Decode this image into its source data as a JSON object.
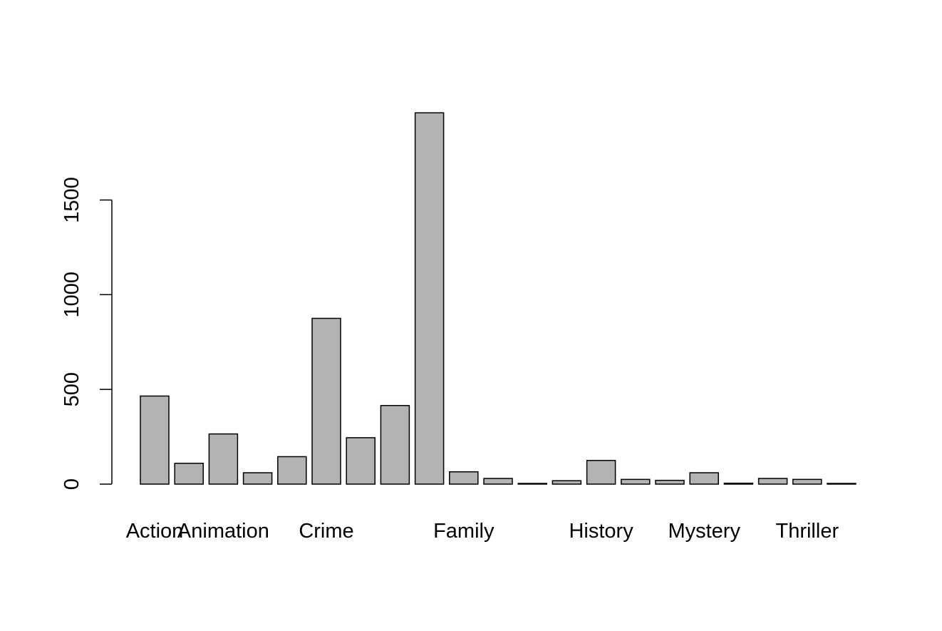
{
  "chart_data": {
    "type": "bar",
    "categories": [
      "Action",
      "",
      "Animation",
      "",
      "",
      "Crime",
      "",
      "",
      "",
      "Family",
      "",
      "",
      "",
      "History",
      "",
      "",
      "Mystery",
      "",
      "",
      "Thriller",
      ""
    ],
    "category_labels_shown": [
      "Action",
      "Animation",
      "Crime",
      "Family",
      "History",
      "Mystery",
      "Thriller"
    ],
    "values": [
      465,
      110,
      265,
      60,
      145,
      875,
      245,
      415,
      1960,
      65,
      30,
      2,
      18,
      125,
      25,
      20,
      60,
      5,
      30,
      25,
      2
    ],
    "title": "",
    "xlabel": "",
    "ylabel": "",
    "yticks": [
      0,
      500,
      1000,
      1500
    ],
    "ylim": [
      0,
      1960
    ],
    "grid": false,
    "legend": "none",
    "bar_fill": "#b3b3b3",
    "bar_stroke": "#000000"
  }
}
